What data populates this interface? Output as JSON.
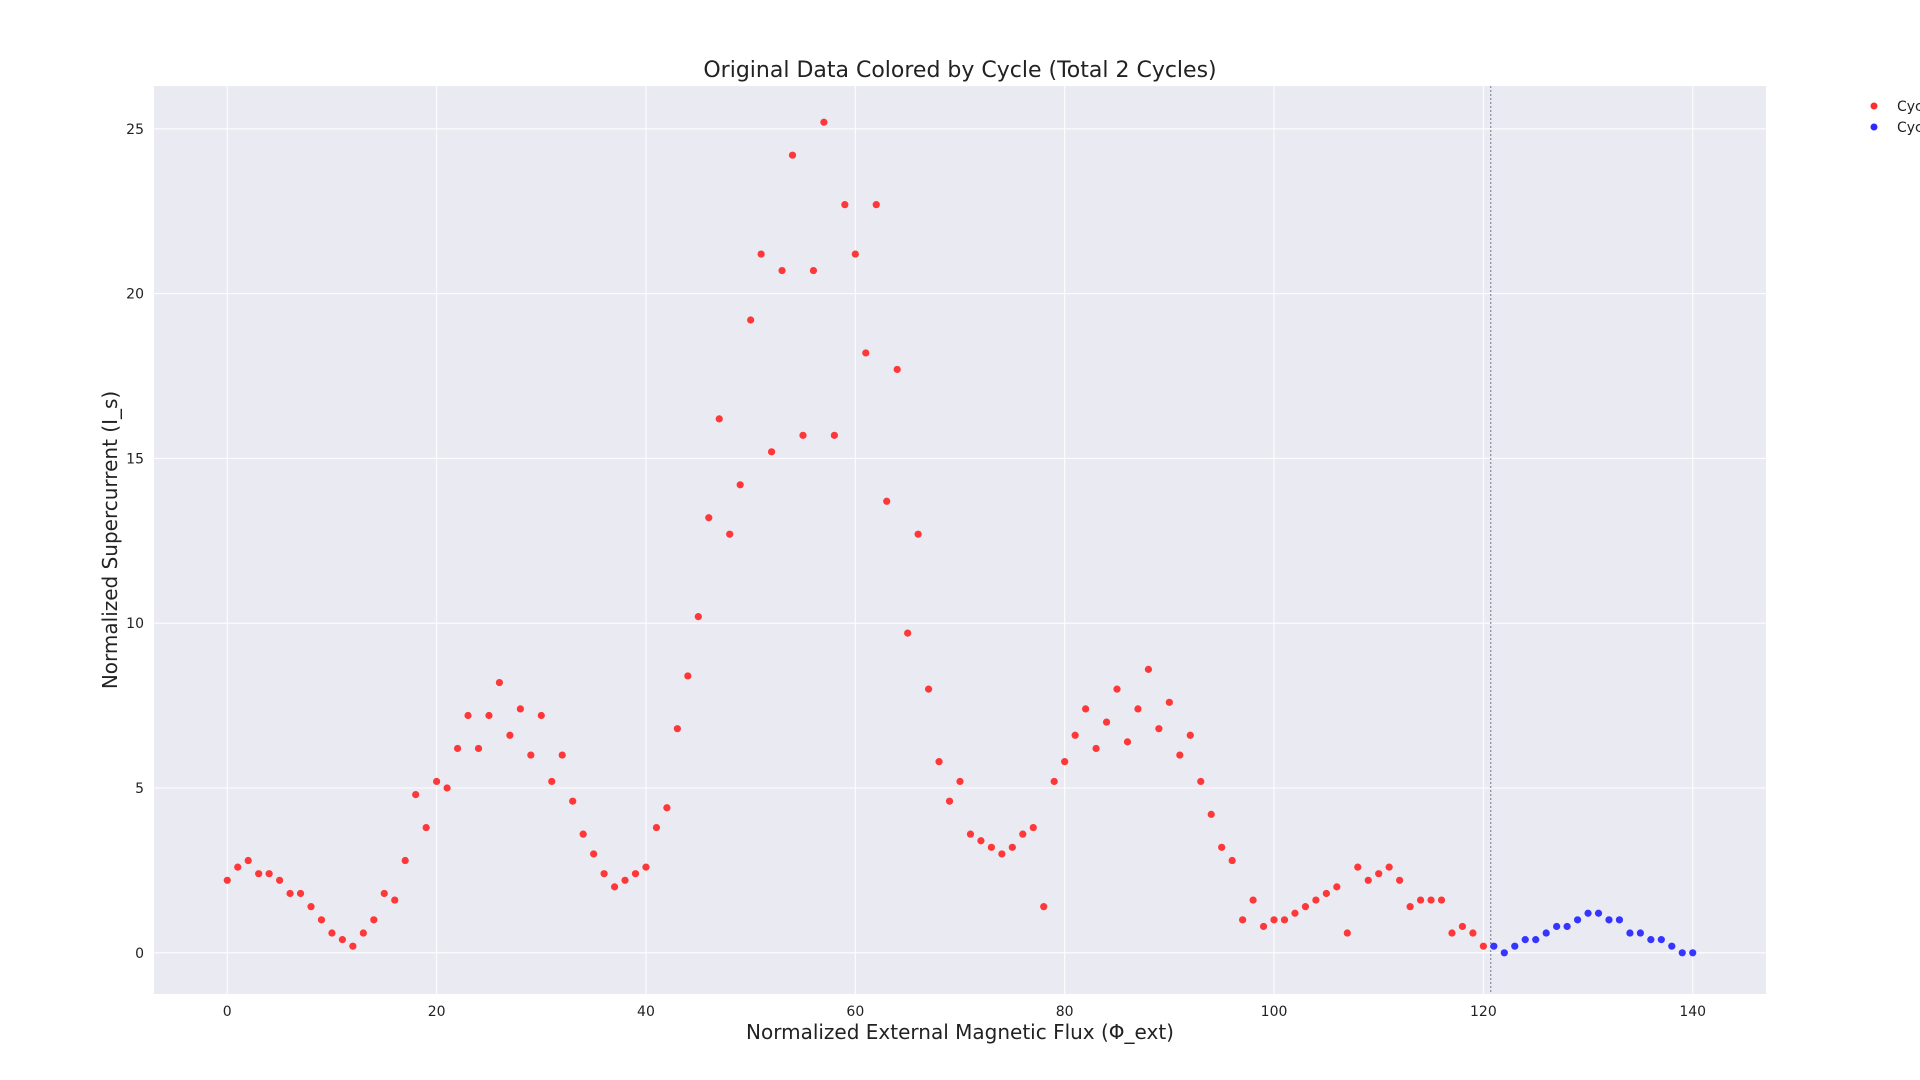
{
  "chart_data": {
    "type": "scatter",
    "title": "Original Data Colored by Cycle (Total 2 Cycles)",
    "xlabel": "Normalized External Magnetic Flux (Φ_ext)",
    "ylabel": "Normalized Supercurrent (I_s)",
    "xlim": [
      -7,
      147
    ],
    "ylim": [
      -1.25,
      26.3
    ],
    "xticks": [
      0,
      20,
      40,
      60,
      80,
      100,
      120,
      140
    ],
    "yticks": [
      0,
      5,
      10,
      15,
      20,
      25
    ],
    "grid": true,
    "legend_position": "top-right (outside plot, clipped)",
    "cycle_boundary_x": 120.7,
    "series": [
      {
        "name": "Cyc",
        "color": "#ff2d2d",
        "x": [
          0,
          1,
          2,
          3,
          4,
          5,
          6,
          7,
          8,
          9,
          10,
          11,
          12,
          13,
          14,
          15,
          16,
          17,
          18,
          19,
          20,
          21,
          22,
          23,
          24,
          25,
          26,
          27,
          28,
          29,
          30,
          31,
          32,
          33,
          34,
          35,
          36,
          37,
          38,
          39,
          40,
          41,
          42,
          43,
          44,
          45,
          46,
          47,
          48,
          49,
          50,
          51,
          52,
          53,
          54,
          55,
          56,
          57,
          58,
          59,
          60,
          61,
          62,
          63,
          64,
          65,
          66,
          67,
          68,
          69,
          70,
          71,
          72,
          73,
          74,
          75,
          76,
          77,
          78,
          79,
          80,
          81,
          82,
          83,
          84,
          85,
          86,
          87,
          88,
          89,
          90,
          91,
          92,
          93,
          94,
          95,
          96,
          97,
          98,
          99,
          100,
          101,
          102,
          103,
          104,
          105,
          106,
          107,
          108,
          109,
          110,
          111,
          112,
          113,
          114,
          115,
          116,
          117,
          118,
          119,
          120
        ],
        "y": [
          2.2,
          2.6,
          2.8,
          2.4,
          2.4,
          2.2,
          1.8,
          1.8,
          1.4,
          1.0,
          0.6,
          0.4,
          0.2,
          0.6,
          1.0,
          1.8,
          1.6,
          2.8,
          4.8,
          3.8,
          5.2,
          5.0,
          6.2,
          7.2,
          6.2,
          7.2,
          8.2,
          6.6,
          7.4,
          6.0,
          7.2,
          5.2,
          6.0,
          4.6,
          3.6,
          3.0,
          2.4,
          2.0,
          2.2,
          2.4,
          2.6,
          3.8,
          4.4,
          6.8,
          8.4,
          10.2,
          13.2,
          16.2,
          12.7,
          14.2,
          19.2,
          21.2,
          15.2,
          20.7,
          24.2,
          15.7,
          20.7,
          25.2,
          15.7,
          22.7,
          21.2,
          18.2,
          22.7,
          13.7,
          17.7,
          9.7,
          12.7,
          8.0,
          5.8,
          4.6,
          5.2,
          3.6,
          3.4,
          3.2,
          3.0,
          3.2,
          3.6,
          3.8,
          1.4,
          5.2,
          5.8,
          6.6,
          7.4,
          6.2,
          7.0,
          8.0,
          6.4,
          7.4,
          8.6,
          6.8,
          7.6,
          6.0,
          6.6,
          5.2,
          4.2,
          3.2,
          2.8,
          1.0,
          1.6,
          0.8,
          1.0,
          1.0,
          1.2,
          1.4,
          1.6,
          1.8,
          2.0,
          0.6,
          2.6,
          2.2,
          2.4,
          2.6,
          2.2,
          1.4,
          1.6,
          1.6,
          1.6,
          0.6,
          0.8,
          0.6,
          0.2
        ]
      },
      {
        "name": "Cyc",
        "color": "#2b2bff",
        "x": [
          121,
          122,
          123,
          124,
          125,
          126,
          127,
          128,
          129,
          130,
          131,
          132,
          133,
          134,
          135,
          136,
          137,
          138,
          139,
          140
        ],
        "y": [
          0.2,
          0.0,
          0.2,
          0.4,
          0.4,
          0.6,
          0.8,
          0.8,
          1.0,
          1.2,
          1.2,
          1.0,
          1.0,
          0.6,
          0.6,
          0.4,
          0.4,
          0.2,
          0.0,
          0.0
        ]
      }
    ]
  }
}
